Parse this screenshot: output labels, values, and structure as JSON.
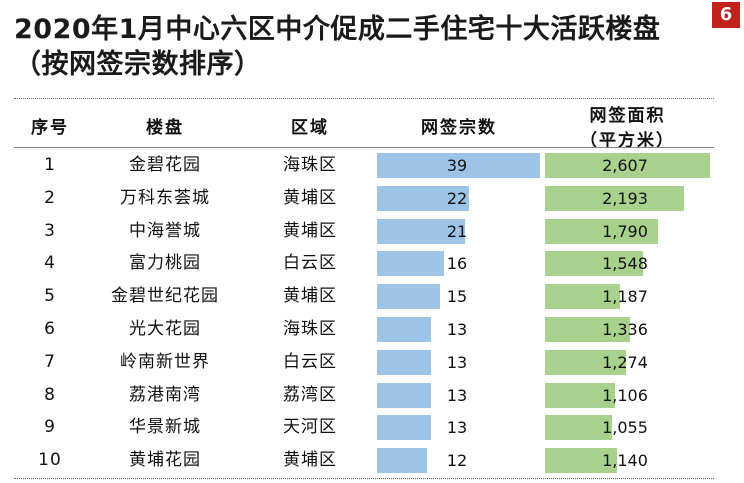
{
  "page": {
    "title_line1": "2020年1月中心六区中介促成二手住宅十大活跃楼盘",
    "title_line2": "（按网签宗数排序）",
    "page_number": "6"
  },
  "chart_data": {
    "type": "table",
    "columns": [
      "序号",
      "楼盘",
      "区域",
      "网签宗数",
      "网签面积",
      "（平方米）"
    ],
    "rows": [
      {
        "rank": "1",
        "name": "金碧花园",
        "district": "海珠区",
        "count": 39,
        "area": 2607,
        "area_label": "2,607"
      },
      {
        "rank": "2",
        "name": "万科东荟城",
        "district": "黄埔区",
        "count": 22,
        "area": 2193,
        "area_label": "2,193"
      },
      {
        "rank": "3",
        "name": "中海誉城",
        "district": "黄埔区",
        "count": 21,
        "area": 1790,
        "area_label": "1,790"
      },
      {
        "rank": "4",
        "name": "富力桃园",
        "district": "白云区",
        "count": 16,
        "area": 1548,
        "area_label": "1,548"
      },
      {
        "rank": "5",
        "name": "金碧世纪花园",
        "district": "黄埔区",
        "count": 15,
        "area": 1187,
        "area_label": "1,187"
      },
      {
        "rank": "6",
        "name": "光大花园",
        "district": "海珠区",
        "count": 13,
        "area": 1336,
        "area_label": "1,336"
      },
      {
        "rank": "7",
        "name": "岭南新世界",
        "district": "白云区",
        "count": 13,
        "area": 1274,
        "area_label": "1,274"
      },
      {
        "rank": "8",
        "name": "荔港南湾",
        "district": "荔湾区",
        "count": 13,
        "area": 1106,
        "area_label": "1,106"
      },
      {
        "rank": "9",
        "name": "华景新城",
        "district": "天河区",
        "count": 13,
        "area": 1055,
        "area_label": "1,055"
      },
      {
        "rank": "10",
        "name": "黄埔花园",
        "district": "黄埔区",
        "count": 12,
        "area": 1140,
        "area_label": "1,140"
      }
    ],
    "count_max": 39,
    "area_max": 2607,
    "colors": {
      "count_bar": "#9dc3e6",
      "area_bar": "#a9d18e",
      "badge": "#c0211b"
    }
  }
}
